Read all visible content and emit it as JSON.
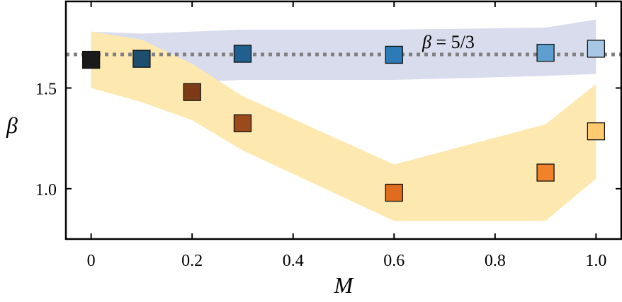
{
  "chart_data": {
    "type": "scatter",
    "title": "",
    "xlabel": "M",
    "ylabel": "β",
    "xlim": [
      -0.05,
      1.05
    ],
    "ylim": [
      0.75,
      1.93
    ],
    "x_ticks": [
      {
        "value": 0,
        "label": "0"
      },
      {
        "value": 0.2,
        "label": "0.2"
      },
      {
        "value": 0.4,
        "label": "0.4"
      },
      {
        "value": 0.6,
        "label": "0.6"
      },
      {
        "value": 0.8,
        "label": "0.8"
      },
      {
        "value": 1.0,
        "label": "1.0"
      }
    ],
    "y_ticks": [
      {
        "value": 1.0,
        "label": "1.0"
      },
      {
        "value": 1.5,
        "label": "1.5"
      }
    ],
    "reference_line": {
      "y": 1.6667,
      "label_prefix": "β",
      "label_suffix": " = 5/3",
      "color": "#808080",
      "style": "dotted"
    },
    "series": [
      {
        "color": "#1f6fa8",
        "band_color": "#d9dcec",
        "points": [
          {
            "x": 0,
            "y": 1.64,
            "color": "#1a1a1a"
          },
          {
            "x": 0.1,
            "y": 1.645,
            "color": "#1d4e6e"
          },
          {
            "x": 0.3,
            "y": 1.67,
            "color": "#205f8e"
          },
          {
            "x": 0.6,
            "y": 1.665,
            "color": "#2c7bb6"
          },
          {
            "x": 0.9,
            "y": 1.675,
            "color": "#5f9fcf"
          },
          {
            "x": 1.0,
            "y": 1.695,
            "color": "#a8c7e4"
          }
        ],
        "band_upper": [
          {
            "x": 0,
            "y": 1.78
          },
          {
            "x": 0.1,
            "y": 1.77
          },
          {
            "x": 0.3,
            "y": 1.79
          },
          {
            "x": 0.6,
            "y": 1.79
          },
          {
            "x": 0.9,
            "y": 1.8
          },
          {
            "x": 1.0,
            "y": 1.84
          }
        ],
        "band_lower": [
          {
            "x": 0,
            "y": 1.5
          },
          {
            "x": 0.1,
            "y": 1.52
          },
          {
            "x": 0.3,
            "y": 1.54
          },
          {
            "x": 0.6,
            "y": 1.54
          },
          {
            "x": 0.9,
            "y": 1.56
          },
          {
            "x": 1.0,
            "y": 1.57
          }
        ]
      },
      {
        "color": "#e07a20",
        "band_color": "#fde9b0",
        "points": [
          {
            "x": 0.2,
            "y": 1.48,
            "color": "#7a3b16"
          },
          {
            "x": 0.3,
            "y": 1.325,
            "color": "#9b4a1c"
          },
          {
            "x": 0.6,
            "y": 0.98,
            "color": "#e06d1e"
          },
          {
            "x": 0.9,
            "y": 1.08,
            "color": "#f0832a"
          },
          {
            "x": 1.0,
            "y": 1.285,
            "color": "#ffcb6e"
          }
        ],
        "band_upper": [
          {
            "x": 0,
            "y": 1.78
          },
          {
            "x": 0.1,
            "y": 1.74
          },
          {
            "x": 0.2,
            "y": 1.62
          },
          {
            "x": 0.3,
            "y": 1.46
          },
          {
            "x": 0.6,
            "y": 1.12
          },
          {
            "x": 0.9,
            "y": 1.32
          },
          {
            "x": 1.0,
            "y": 1.52
          }
        ],
        "band_lower": [
          {
            "x": 0,
            "y": 1.5
          },
          {
            "x": 0.1,
            "y": 1.43
          },
          {
            "x": 0.2,
            "y": 1.34
          },
          {
            "x": 0.3,
            "y": 1.19
          },
          {
            "x": 0.6,
            "y": 0.84
          },
          {
            "x": 0.9,
            "y": 0.84
          },
          {
            "x": 1.0,
            "y": 1.05
          }
        ]
      }
    ]
  }
}
